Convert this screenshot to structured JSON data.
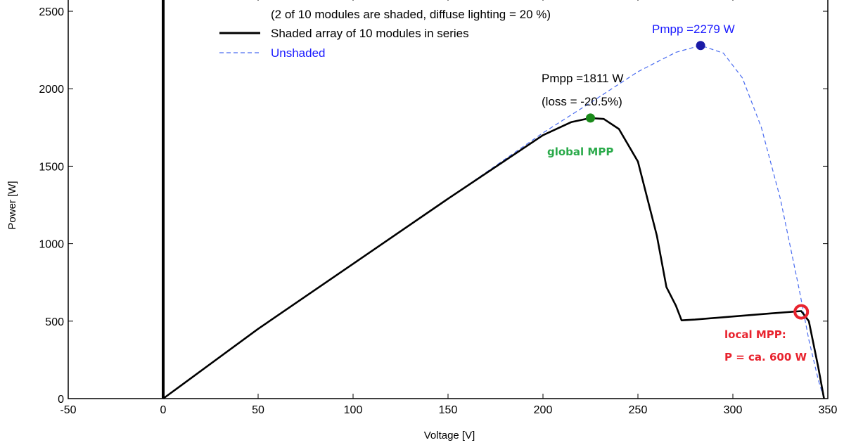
{
  "chart_data": {
    "type": "line",
    "xlabel": "Voltage [V]",
    "ylabel": "Power [W]",
    "xlim": [
      -50,
      350
    ],
    "ylim": [
      0,
      2600
    ],
    "x_ticks": [
      -50,
      0,
      50,
      100,
      150,
      200,
      250,
      300,
      350
    ],
    "y_ticks": [
      0,
      500,
      1000,
      1500,
      2000,
      2500
    ],
    "grid": false,
    "legend": {
      "note": "(2 of 10 modules are shaded, diffuse lighting = 20 %)",
      "placement": "top-center"
    },
    "series": [
      {
        "name": "Shaded array of 10 modules in series",
        "style": "solid",
        "color": "#000000",
        "x": [
          0,
          50,
          100,
          150,
          200,
          215,
          225,
          232,
          240,
          250,
          260,
          265,
          270,
          273,
          280,
          300,
          320,
          336,
          340,
          345,
          348
        ],
        "y": [
          0,
          450,
          870,
          1290,
          1700,
          1785,
          1811,
          1805,
          1740,
          1530,
          1050,
          720,
          600,
          505,
          510,
          530,
          550,
          565,
          500,
          200,
          0
        ]
      },
      {
        "name": "Unshaded",
        "style": "dashed",
        "color": "#4a6cf0",
        "x": [
          0,
          50,
          100,
          150,
          200,
          225,
          250,
          270,
          283,
          295,
          305,
          315,
          325,
          335,
          340,
          345,
          348
        ],
        "y": [
          0,
          450,
          870,
          1290,
          1715,
          1910,
          2110,
          2235,
          2279,
          2230,
          2070,
          1750,
          1290,
          700,
          380,
          120,
          0
        ]
      }
    ],
    "annotations": [
      {
        "id": "pmpp_unshaded",
        "text": "Pmpp =2279 W",
        "x": 283,
        "y": 2279,
        "color": "#1a1aa6",
        "text_color": "#1a1aff"
      },
      {
        "id": "pmpp_shaded",
        "text": "Pmpp =1811 W",
        "text2": "(loss = -20.5%)",
        "x": 225,
        "y": 1811,
        "color": "#1a8a1a"
      },
      {
        "id": "global_mpp",
        "text": "global MPP",
        "color": "#2aaa4a"
      },
      {
        "id": "local_mpp",
        "text": "local MPP:",
        "text2": "P = ca. 600 W",
        "x": 336,
        "y": 560,
        "color": "#e8232e"
      }
    ]
  }
}
